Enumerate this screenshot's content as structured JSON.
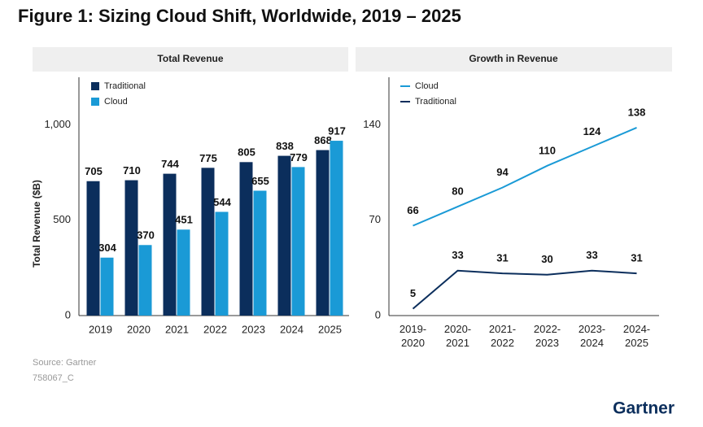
{
  "title": "Figure 1: Sizing Cloud Shift, Worldwide, 2019 – 2025",
  "source": "Source: Gartner",
  "code": "758067_C",
  "logo": "Gartner",
  "chart_data": [
    {
      "type": "bar",
      "title": "Total Revenue",
      "y_label": "Total Revenue ($B)",
      "categories": [
        "2019",
        "2020",
        "2021",
        "2022",
        "2023",
        "2024",
        "2025"
      ],
      "series": [
        {
          "name": "Traditional",
          "color": "#0b2e5c",
          "values": [
            705,
            710,
            744,
            775,
            805,
            838,
            868
          ]
        },
        {
          "name": "Cloud",
          "color": "#1a9ad6",
          "values": [
            304,
            370,
            451,
            544,
            655,
            779,
            917
          ]
        }
      ],
      "ylim": [
        0,
        1250
      ],
      "yticks": [
        0,
        500,
        {
          "value": 1000,
          "label": "1,000"
        }
      ],
      "legend": "top-left"
    },
    {
      "type": "line",
      "title": "Growth in Revenue",
      "categories": [
        "2019-2020",
        "2020-2021",
        "2021-2022",
        "2022-2023",
        "2023-2024",
        "2024-2025"
      ],
      "series": [
        {
          "name": "Cloud",
          "color": "#1a9ad6",
          "values": [
            66,
            80,
            94,
            110,
            124,
            138
          ]
        },
        {
          "name": "Traditional",
          "color": "#0b2e5c",
          "values": [
            5,
            33,
            31,
            30,
            33,
            31
          ]
        }
      ],
      "ylim": [
        0,
        175
      ],
      "yticks": [
        0,
        70,
        140
      ],
      "legend": "top-left"
    }
  ]
}
